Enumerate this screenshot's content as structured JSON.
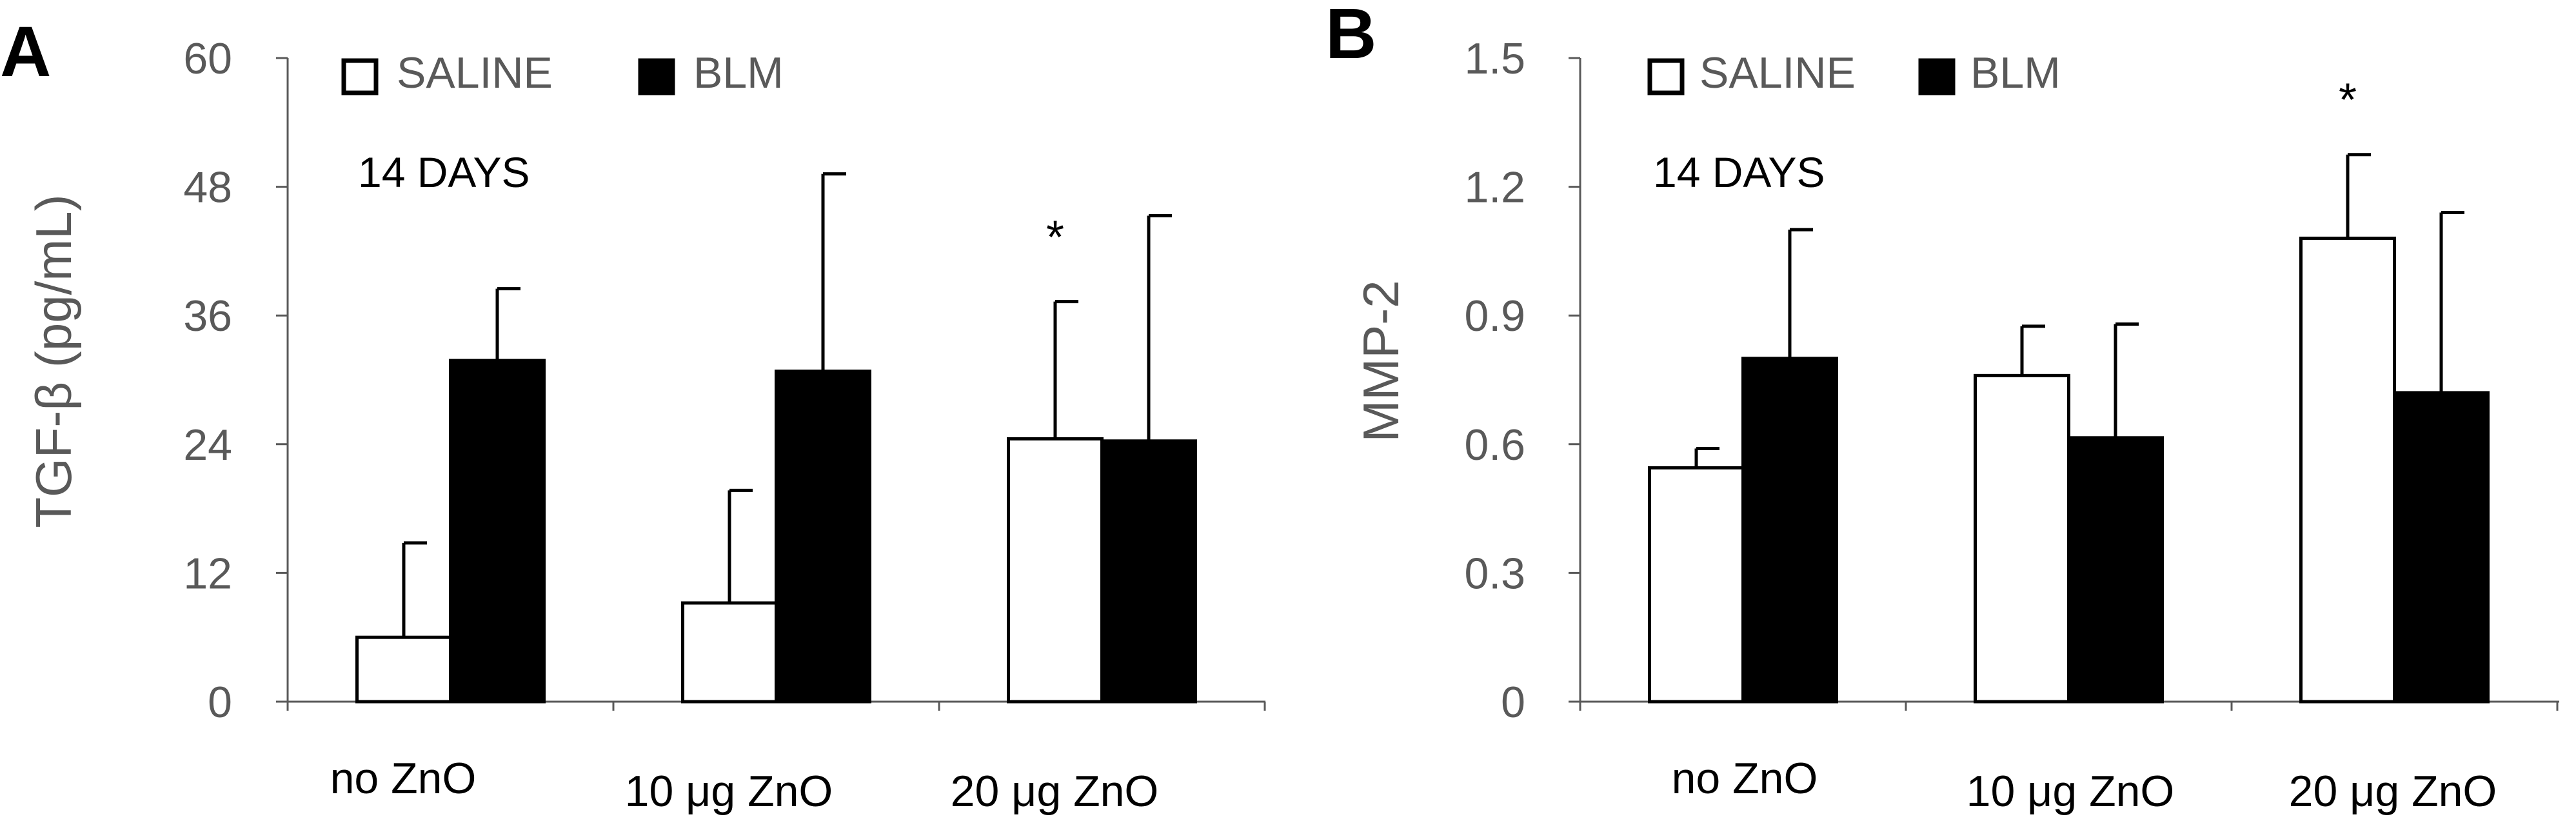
{
  "chart_data": [
    {
      "panel": "A",
      "type": "bar",
      "title": "",
      "annotation": "14 DAYS",
      "xlabel": "",
      "ylabel": "TGF-β (pg/mL)",
      "ylim": [
        0,
        60
      ],
      "yticks": [
        "0",
        "12",
        "24",
        "36",
        "48",
        "60"
      ],
      "categories": [
        "no ZnO",
        "10 μg ZnO",
        "20 μg ZnO"
      ],
      "series": [
        {
          "name": "SALINE",
          "fill": "#ffffff",
          "values": [
            6,
            9.2,
            24.5
          ],
          "errors": [
            8.8,
            10.5,
            12.8
          ]
        },
        {
          "name": "BLM",
          "fill": "#000000",
          "values": [
            31.8,
            30.8,
            24.3
          ],
          "errors": [
            6.7,
            18.4,
            21
          ]
        }
      ],
      "significance": [
        {
          "label": "*",
          "category": 2,
          "series": 0
        }
      ],
      "legend_position": "top-left",
      "grid": false
    },
    {
      "panel": "B",
      "type": "bar",
      "title": "",
      "annotation": "14 DAYS",
      "xlabel": "",
      "ylabel": "MMP-2",
      "ylim": [
        0,
        1.5
      ],
      "yticks": [
        "0",
        "0.3",
        "0.6",
        "0.9",
        "1.2",
        "1.5"
      ],
      "categories": [
        "no ZnO",
        "10 μg ZnO",
        "20 μg ZnO"
      ],
      "series": [
        {
          "name": "SALINE",
          "fill": "#ffffff",
          "values": [
            0.545,
            0.76,
            1.08
          ],
          "errors": [
            0.045,
            0.115,
            0.195
          ]
        },
        {
          "name": "BLM",
          "fill": "#000000",
          "values": [
            0.8,
            0.615,
            0.72
          ],
          "errors": [
            0.3,
            0.265,
            0.42
          ]
        }
      ],
      "significance": [
        {
          "label": "*",
          "category": 2,
          "series": 0
        }
      ],
      "legend_position": "top-left",
      "grid": false
    }
  ]
}
